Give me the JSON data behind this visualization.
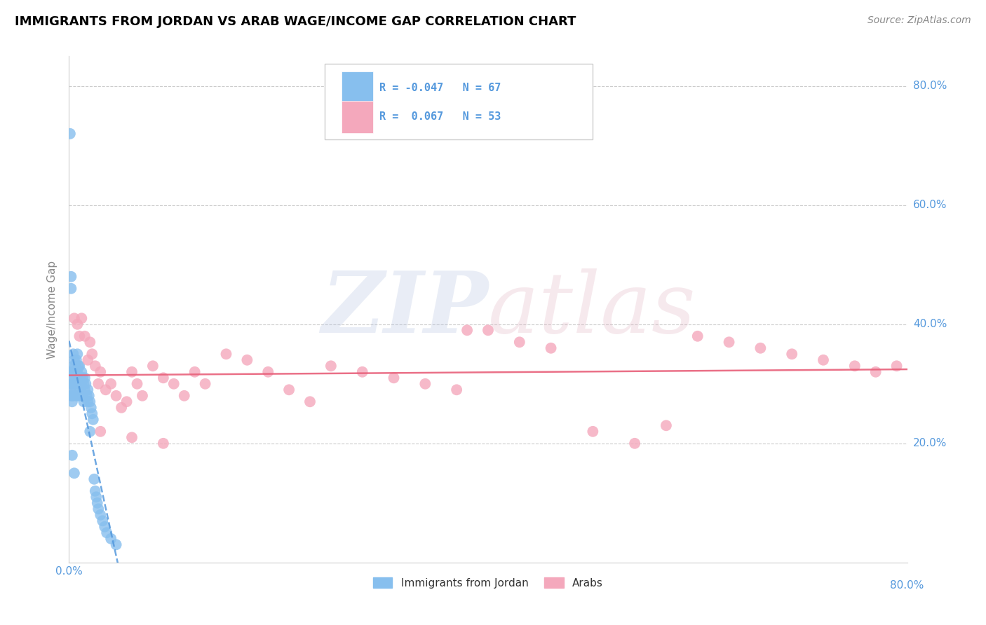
{
  "title": "IMMIGRANTS FROM JORDAN VS ARAB WAGE/INCOME GAP CORRELATION CHART",
  "source": "Source: ZipAtlas.com",
  "ylabel": "Wage/Income Gap",
  "xlim": [
    0.0,
    0.8
  ],
  "ylim": [
    0.0,
    0.85
  ],
  "xtick_vals": [
    0.0,
    0.2,
    0.4,
    0.6,
    0.8
  ],
  "ytick_vals": [
    0.2,
    0.4,
    0.6,
    0.8
  ],
  "xticklabels": [
    "0.0%",
    "",
    "",
    "",
    "80.0%"
  ],
  "yticklabels": [
    "20.0%",
    "40.0%",
    "60.0%",
    "80.0%"
  ],
  "blue_color": "#87BFEE",
  "pink_color": "#F4A8BC",
  "blue_line_color": "#5599DD",
  "pink_line_color": "#E8607A",
  "tick_color": "#5599DD",
  "grid_color": "#CCCCCC",
  "watermark_zip_color": "#AABBDD",
  "watermark_atlas_color": "#DDAABB",
  "legend_r1": "R = -0.047",
  "legend_n1": "N = 67",
  "legend_r2": "R =  0.067",
  "legend_n2": "N = 53",
  "jordan_x": [
    0.001,
    0.001,
    0.001,
    0.002,
    0.002,
    0.002,
    0.002,
    0.002,
    0.003,
    0.003,
    0.003,
    0.003,
    0.003,
    0.004,
    0.004,
    0.004,
    0.004,
    0.005,
    0.005,
    0.005,
    0.005,
    0.006,
    0.006,
    0.006,
    0.007,
    0.007,
    0.007,
    0.007,
    0.008,
    0.008,
    0.008,
    0.009,
    0.009,
    0.01,
    0.01,
    0.01,
    0.011,
    0.011,
    0.012,
    0.012,
    0.013,
    0.013,
    0.014,
    0.014,
    0.015,
    0.015,
    0.016,
    0.017,
    0.018,
    0.018,
    0.019,
    0.02,
    0.02,
    0.021,
    0.022,
    0.023,
    0.024,
    0.025,
    0.026,
    0.027,
    0.028,
    0.03,
    0.032,
    0.034,
    0.036,
    0.04,
    0.045
  ],
  "jordan_y": [
    0.72,
    0.32,
    0.29,
    0.48,
    0.46,
    0.31,
    0.28,
    0.3,
    0.32,
    0.3,
    0.28,
    0.27,
    0.18,
    0.35,
    0.33,
    0.3,
    0.28,
    0.34,
    0.32,
    0.3,
    0.15,
    0.33,
    0.31,
    0.29,
    0.34,
    0.32,
    0.3,
    0.28,
    0.35,
    0.32,
    0.28,
    0.33,
    0.31,
    0.33,
    0.31,
    0.28,
    0.31,
    0.29,
    0.32,
    0.3,
    0.31,
    0.28,
    0.3,
    0.27,
    0.31,
    0.29,
    0.3,
    0.28,
    0.29,
    0.27,
    0.28,
    0.27,
    0.22,
    0.26,
    0.25,
    0.24,
    0.14,
    0.12,
    0.11,
    0.1,
    0.09,
    0.08,
    0.07,
    0.06,
    0.05,
    0.04,
    0.03
  ],
  "arabs_x": [
    0.005,
    0.008,
    0.01,
    0.012,
    0.015,
    0.018,
    0.02,
    0.022,
    0.025,
    0.028,
    0.03,
    0.035,
    0.04,
    0.045,
    0.05,
    0.055,
    0.06,
    0.065,
    0.07,
    0.08,
    0.09,
    0.1,
    0.11,
    0.12,
    0.13,
    0.15,
    0.17,
    0.19,
    0.21,
    0.23,
    0.25,
    0.28,
    0.31,
    0.34,
    0.37,
    0.4,
    0.43,
    0.46,
    0.5,
    0.54,
    0.57,
    0.6,
    0.63,
    0.66,
    0.69,
    0.72,
    0.75,
    0.77,
    0.79,
    0.03,
    0.06,
    0.09,
    0.38
  ],
  "arabs_y": [
    0.41,
    0.4,
    0.38,
    0.41,
    0.38,
    0.34,
    0.37,
    0.35,
    0.33,
    0.3,
    0.32,
    0.29,
    0.3,
    0.28,
    0.26,
    0.27,
    0.32,
    0.3,
    0.28,
    0.33,
    0.31,
    0.3,
    0.28,
    0.32,
    0.3,
    0.35,
    0.34,
    0.32,
    0.29,
    0.27,
    0.33,
    0.32,
    0.31,
    0.3,
    0.29,
    0.39,
    0.37,
    0.36,
    0.22,
    0.2,
    0.23,
    0.38,
    0.37,
    0.36,
    0.35,
    0.34,
    0.33,
    0.32,
    0.33,
    0.22,
    0.21,
    0.2,
    0.39
  ]
}
